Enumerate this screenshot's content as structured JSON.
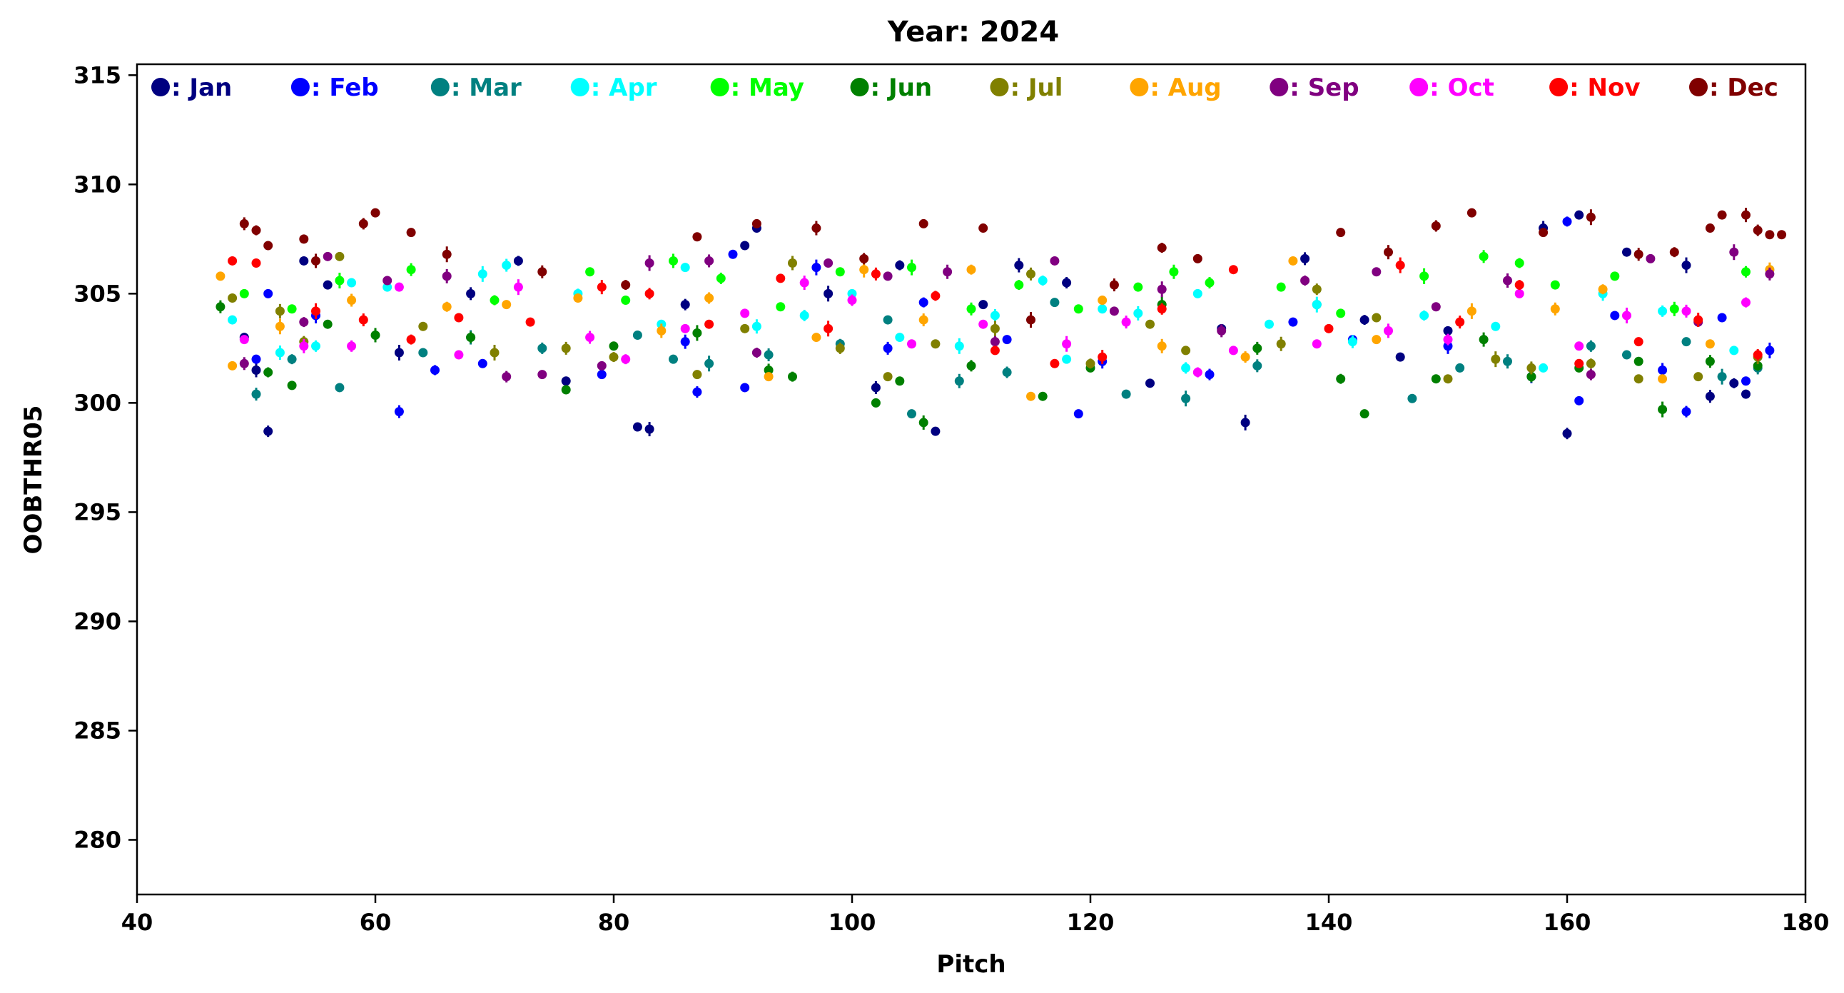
{
  "chart_data": {
    "type": "scatter",
    "title": "Year: 2024",
    "xlabel": "Pitch",
    "ylabel": "OOBTHR05",
    "xlim": [
      40,
      180
    ],
    "ylim": [
      277.5,
      315.5
    ],
    "xticks": [
      40,
      60,
      80,
      100,
      120,
      140,
      160,
      180
    ],
    "yticks": [
      280,
      285,
      290,
      295,
      300,
      305,
      310,
      315
    ],
    "grid": false,
    "legend_placement": "top",
    "error_bars": true,
    "series": [
      {
        "name": "Jan",
        "legend_label": ": Jan",
        "color": "#000080",
        "x": [
          49,
          50,
          51,
          54,
          56,
          62,
          68,
          72,
          76,
          82,
          83,
          86,
          91,
          92,
          98,
          102,
          104,
          107,
          111,
          114,
          118,
          125,
          131,
          133,
          138,
          143,
          146,
          150,
          158,
          160,
          161,
          165,
          170,
          172,
          174,
          175
        ],
        "y": [
          303.0,
          301.5,
          298.7,
          306.5,
          305.4,
          302.3,
          305.0,
          306.5,
          301.0,
          298.9,
          298.8,
          304.5,
          307.2,
          308.0,
          305.0,
          300.7,
          306.3,
          298.7,
          304.5,
          306.3,
          305.5,
          300.9,
          303.4,
          299.1,
          306.6,
          303.8,
          302.1,
          303.3,
          308.0,
          298.6,
          308.6,
          306.9,
          306.3,
          300.3,
          300.9,
          300.4
        ]
      },
      {
        "name": "Feb",
        "legend_label": ": Feb",
        "color": "#0000ff",
        "x": [
          50,
          51,
          55,
          62,
          65,
          69,
          79,
          86,
          87,
          90,
          91,
          97,
          103,
          106,
          113,
          119,
          121,
          130,
          137,
          142,
          150,
          157,
          160,
          161,
          164,
          168,
          170,
          173,
          175,
          177
        ],
        "y": [
          302.0,
          305.0,
          304.0,
          299.6,
          301.5,
          301.8,
          301.3,
          302.8,
          300.5,
          306.8,
          300.7,
          306.2,
          302.5,
          304.6,
          302.9,
          299.5,
          301.9,
          301.3,
          303.7,
          302.9,
          302.6,
          301.2,
          308.3,
          300.1,
          304.0,
          301.5,
          299.6,
          303.9,
          301.0,
          302.4
        ]
      },
      {
        "name": "Mar",
        "legend_label": ": Mar",
        "color": "#008080",
        "x": [
          50,
          53,
          57,
          64,
          68,
          74,
          82,
          85,
          88,
          93,
          99,
          103,
          105,
          109,
          113,
          117,
          123,
          128,
          134,
          139,
          147,
          151,
          155,
          162,
          165,
          170,
          173,
          176
        ],
        "y": [
          300.4,
          302.0,
          300.7,
          302.3,
          303.0,
          302.5,
          303.1,
          302.0,
          301.8,
          302.2,
          302.7,
          303.8,
          299.5,
          301.0,
          301.4,
          304.6,
          300.4,
          300.2,
          301.7,
          304.5,
          300.2,
          301.6,
          301.9,
          302.6,
          302.2,
          302.8,
          301.2,
          301.6
        ]
      },
      {
        "name": "Apr",
        "legend_label": ": Apr",
        "color": "#00ffff",
        "x": [
          48,
          52,
          55,
          58,
          61,
          69,
          71,
          77,
          84,
          86,
          92,
          96,
          100,
          104,
          109,
          112,
          116,
          118,
          121,
          124,
          128,
          129,
          135,
          139,
          142,
          148,
          154,
          158,
          163,
          168,
          174,
          177
        ],
        "y": [
          303.8,
          302.3,
          302.6,
          305.5,
          305.3,
          305.9,
          306.3,
          305.0,
          303.6,
          306.2,
          303.5,
          304.0,
          305.0,
          303.0,
          302.6,
          304.0,
          305.6,
          302.0,
          304.3,
          304.1,
          301.6,
          305.0,
          303.6,
          304.5,
          302.8,
          304.0,
          303.5,
          301.6,
          305.0,
          304.2,
          302.4,
          306.1
        ]
      },
      {
        "name": "May",
        "legend_label": ": May",
        "color": "#00ff00",
        "x": [
          49,
          53,
          57,
          63,
          70,
          78,
          81,
          85,
          89,
          94,
          99,
          105,
          110,
          114,
          119,
          124,
          127,
          130,
          136,
          141,
          148,
          153,
          156,
          159,
          164,
          169,
          175
        ],
        "y": [
          305.0,
          304.3,
          305.6,
          306.1,
          304.7,
          306.0,
          304.7,
          306.5,
          305.7,
          304.4,
          306.0,
          306.2,
          304.3,
          305.4,
          304.3,
          305.3,
          306.0,
          305.5,
          305.3,
          304.1,
          305.8,
          306.7,
          306.4,
          305.4,
          305.8,
          304.3,
          306.0
        ]
      },
      {
        "name": "Jun",
        "legend_label": ": Jun",
        "color": "#008000",
        "x": [
          47,
          51,
          53,
          56,
          60,
          68,
          76,
          80,
          87,
          93,
          95,
          102,
          104,
          106,
          110,
          116,
          120,
          126,
          134,
          141,
          143,
          149,
          153,
          157,
          161,
          166,
          168,
          172,
          176
        ],
        "y": [
          304.4,
          301.4,
          300.8,
          303.6,
          303.1,
          303.0,
          300.6,
          302.6,
          303.2,
          301.5,
          301.2,
          300.0,
          301.0,
          299.1,
          301.7,
          300.3,
          301.6,
          304.5,
          302.5,
          301.1,
          299.5,
          301.1,
          302.9,
          301.2,
          301.6,
          301.9,
          299.7,
          301.9,
          301.7
        ]
      },
      {
        "name": "Jul",
        "legend_label": ": Jul",
        "color": "#808000",
        "x": [
          48,
          52,
          54,
          57,
          64,
          70,
          76,
          80,
          87,
          91,
          95,
          99,
          103,
          107,
          112,
          115,
          120,
          125,
          128,
          136,
          139,
          144,
          150,
          154,
          157,
          162,
          166,
          171,
          176
        ],
        "y": [
          304.8,
          304.2,
          302.8,
          306.7,
          303.5,
          302.3,
          302.5,
          302.1,
          301.3,
          303.4,
          306.4,
          302.5,
          301.2,
          302.7,
          303.4,
          305.9,
          301.8,
          303.6,
          302.4,
          302.7,
          305.2,
          303.9,
          301.1,
          302.0,
          301.6,
          301.8,
          301.1,
          301.2,
          302.1
        ]
      },
      {
        "name": "Aug",
        "legend_label": ": Aug",
        "color": "#ffa500",
        "x": [
          47,
          48,
          52,
          58,
          66,
          71,
          77,
          84,
          88,
          93,
          97,
          101,
          106,
          110,
          115,
          121,
          126,
          133,
          137,
          144,
          152,
          159,
          163,
          168,
          172,
          177
        ],
        "y": [
          305.8,
          301.7,
          303.5,
          304.7,
          304.4,
          304.5,
          304.8,
          303.3,
          304.8,
          301.2,
          303.0,
          306.1,
          303.8,
          306.1,
          300.3,
          304.7,
          302.6,
          302.1,
          306.5,
          302.9,
          304.2,
          304.3,
          305.2,
          301.1,
          302.7,
          306.1
        ]
      },
      {
        "name": "Sep",
        "legend_label": ": Sep",
        "color": "#800080",
        "x": [
          49,
          54,
          56,
          61,
          66,
          71,
          74,
          79,
          83,
          88,
          92,
          98,
          103,
          108,
          112,
          117,
          122,
          126,
          131,
          138,
          144,
          149,
          155,
          162,
          167,
          171,
          174,
          177
        ],
        "y": [
          301.8,
          303.7,
          306.7,
          305.6,
          305.8,
          301.2,
          301.3,
          301.7,
          306.4,
          306.5,
          302.3,
          306.4,
          305.8,
          306.0,
          302.8,
          306.5,
          304.2,
          305.2,
          303.3,
          305.6,
          306.0,
          304.4,
          305.6,
          301.3,
          306.6,
          303.7,
          306.9,
          305.9
        ]
      },
      {
        "name": "Oct",
        "legend_label": ": Oct",
        "color": "#ff00ff",
        "x": [
          49,
          54,
          58,
          62,
          67,
          72,
          78,
          81,
          86,
          91,
          96,
          100,
          105,
          111,
          118,
          123,
          129,
          132,
          139,
          145,
          150,
          156,
          161,
          165,
          170,
          175
        ],
        "y": [
          302.9,
          302.6,
          302.6,
          305.3,
          302.2,
          305.3,
          303.0,
          302.0,
          303.4,
          304.1,
          305.5,
          304.7,
          302.7,
          303.6,
          302.7,
          303.7,
          301.4,
          302.4,
          302.7,
          303.3,
          302.9,
          305.0,
          302.6,
          304.0,
          304.2,
          304.6
        ]
      },
      {
        "name": "Nov",
        "legend_label": ": Nov",
        "color": "#ff0000",
        "x": [
          48,
          50,
          55,
          59,
          63,
          67,
          73,
          79,
          83,
          88,
          94,
          98,
          102,
          107,
          112,
          117,
          121,
          126,
          132,
          140,
          146,
          151,
          156,
          161,
          166,
          171,
          176
        ],
        "y": [
          306.5,
          306.4,
          304.2,
          303.8,
          302.9,
          303.9,
          303.7,
          305.3,
          305.0,
          303.6,
          305.7,
          303.4,
          305.9,
          304.9,
          302.4,
          301.8,
          302.1,
          304.3,
          306.1,
          303.4,
          306.3,
          303.7,
          305.4,
          301.8,
          302.8,
          303.8,
          302.2
        ]
      },
      {
        "name": "Dec",
        "legend_label": ": Dec",
        "color": "#800000",
        "x": [
          49,
          50,
          51,
          54,
          55,
          59,
          60,
          63,
          66,
          74,
          81,
          87,
          92,
          97,
          101,
          106,
          111,
          115,
          122,
          126,
          129,
          141,
          145,
          149,
          152,
          158,
          162,
          166,
          169,
          172,
          173,
          175,
          176,
          177,
          178
        ],
        "y": [
          308.2,
          307.9,
          307.2,
          307.5,
          306.5,
          308.2,
          308.7,
          307.8,
          306.8,
          306.0,
          305.4,
          307.6,
          308.2,
          308.0,
          306.6,
          308.2,
          308.0,
          303.8,
          305.4,
          307.1,
          306.6,
          307.8,
          306.9,
          308.1,
          308.7,
          307.8,
          308.5,
          306.8,
          306.9,
          308.0,
          308.6,
          308.6,
          307.9,
          307.7,
          307.7
        ]
      }
    ]
  }
}
